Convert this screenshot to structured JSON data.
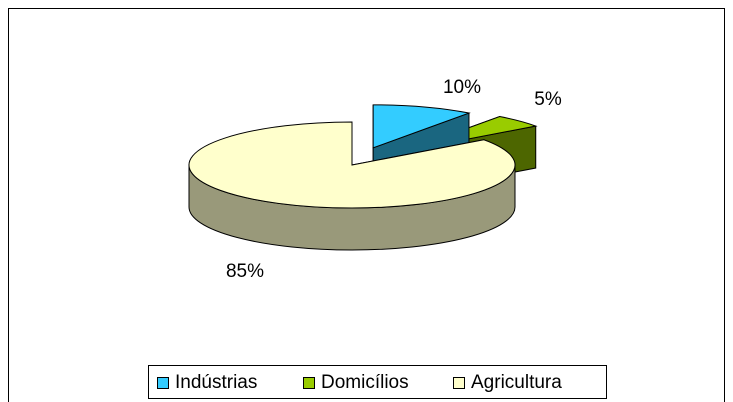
{
  "chart_data": {
    "type": "pie",
    "categories": [
      "Indústrias",
      "Domicílios",
      "Agricultura"
    ],
    "values": [
      10,
      5,
      85
    ],
    "value_labels": [
      "10%",
      "5%",
      "85%"
    ],
    "colors": [
      "#33ccff",
      "#99cc00",
      "#ffffcc"
    ],
    "legend": "bottom"
  }
}
